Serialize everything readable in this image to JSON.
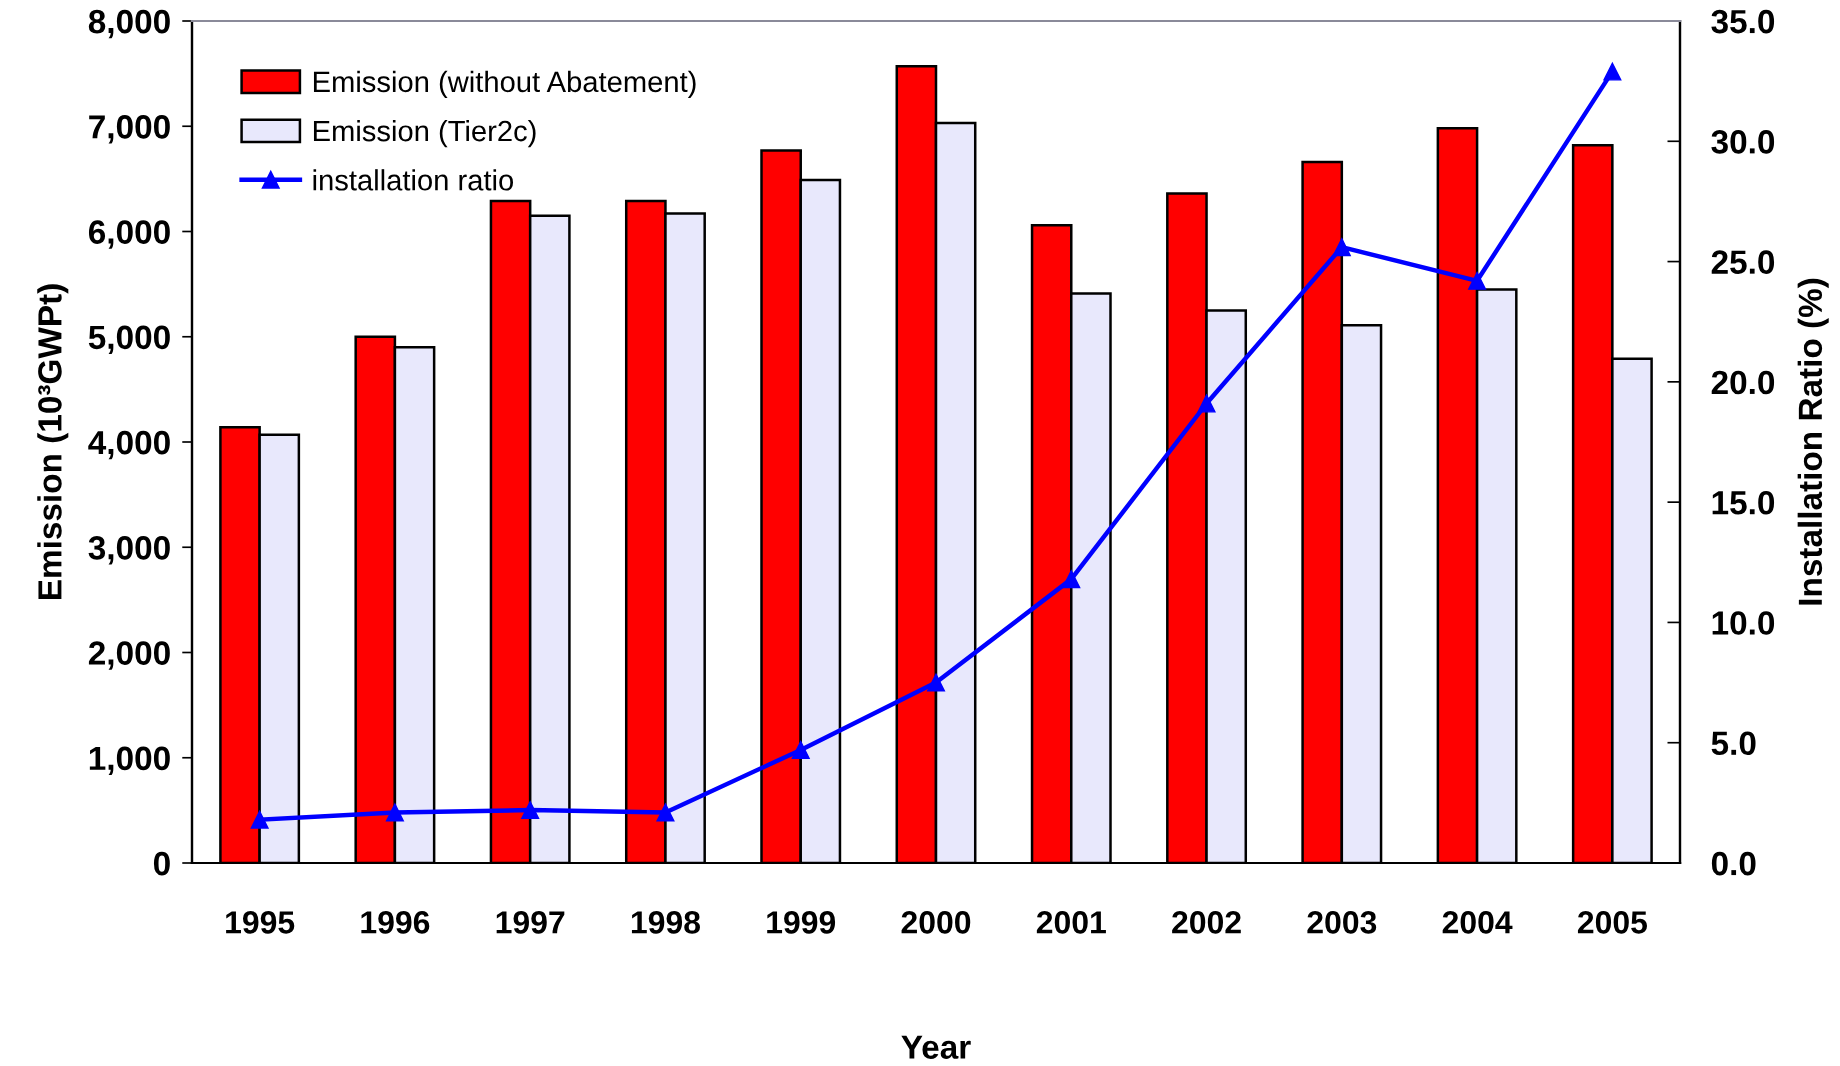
{
  "chart_data": {
    "type": "bar",
    "xlabel": "Year",
    "ylabel": "Emission (10³GWPt)",
    "y2label": "Installation Ratio (%)",
    "categories": [
      "1995",
      "1996",
      "1997",
      "1998",
      "1999",
      "2000",
      "2001",
      "2002",
      "2003",
      "2004",
      "2005"
    ],
    "series": [
      {
        "name": "Emission (without Abatement)",
        "color": "#ff0000",
        "values": [
          4140,
          5000,
          6290,
          6290,
          6770,
          7570,
          6060,
          6360,
          6660,
          6980,
          6820
        ]
      },
      {
        "name": "Emission (Tier2c)",
        "color": "#e8e8fc",
        "values": [
          4070,
          4900,
          6150,
          6170,
          6490,
          7030,
          5410,
          5250,
          5110,
          5450,
          4790
        ]
      },
      {
        "name": "installation ratio",
        "type": "line",
        "axis": "y2",
        "color": "#0000ff",
        "values": [
          1.8,
          2.1,
          2.2,
          2.1,
          4.7,
          7.5,
          11.8,
          19.1,
          25.6,
          24.2,
          32.9
        ]
      }
    ],
    "ylim": [
      0,
      8000
    ],
    "yticks": [
      0,
      {
        "value": 1000,
        "label": "1,000"
      },
      {
        "value": 2000,
        "label": "2,000"
      },
      {
        "value": 3000,
        "label": "3,000"
      },
      {
        "value": 4000,
        "label": "4,000"
      },
      {
        "value": 5000,
        "label": "5,000"
      },
      {
        "value": 6000,
        "label": "6,000"
      },
      {
        "value": 7000,
        "label": "7,000"
      },
      {
        "value": 8000,
        "label": "8,000"
      }
    ],
    "y2lim": [
      0,
      35
    ],
    "y2ticks": [
      {
        "value": 0,
        "label": "0.0"
      },
      {
        "value": 5,
        "label": "5.0"
      },
      {
        "value": 10,
        "label": "10.0"
      },
      {
        "value": 15,
        "label": "15.0"
      },
      {
        "value": 20,
        "label": "20.0"
      },
      {
        "value": 25,
        "label": "25.0"
      },
      {
        "value": 30,
        "label": "30.0"
      },
      {
        "value": 35,
        "label": "35.0"
      }
    ],
    "legend": "top left",
    "marker": "triangle",
    "line_style": "solid"
  }
}
